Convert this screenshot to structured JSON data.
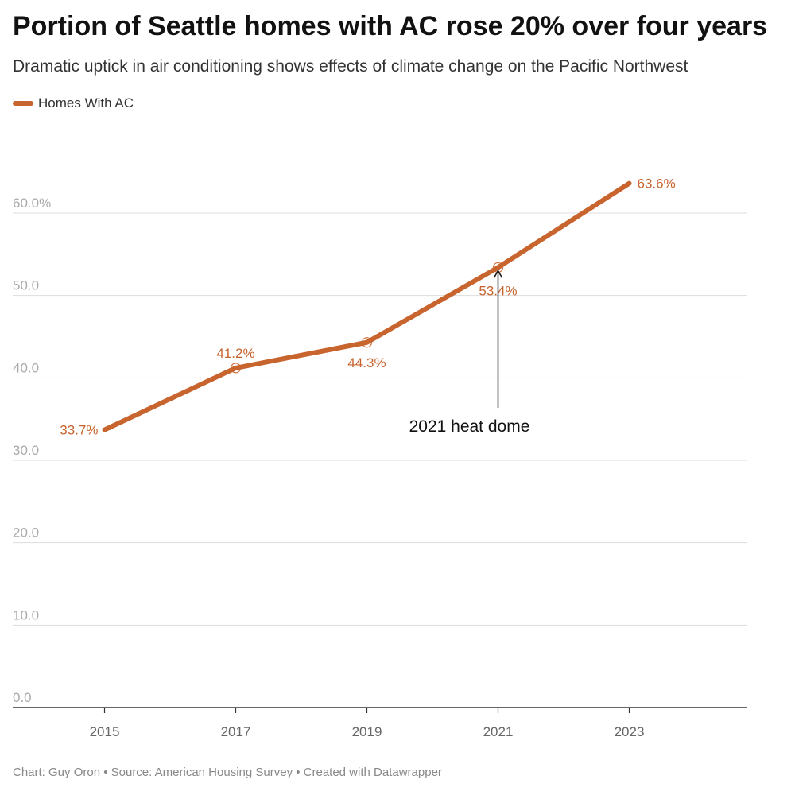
{
  "title": "Portion of Seattle homes with AC rose 20% over four years",
  "subtitle": "Dramatic uptick in air conditioning shows effects of climate change on the Pacific Northwest",
  "footer": "Chart: Guy Oron • Source: American Housing Survey • Created with Datawrapper",
  "colors": {
    "series": "#c8642e",
    "grid": "#dddddd",
    "axis": "#333333",
    "tick_label": "#aaaaaa",
    "x_tick_label": "#666666"
  },
  "chart_data": {
    "type": "line",
    "title": "Portion of Seattle homes with AC rose 20% over four years",
    "subtitle": "Dramatic uptick in air conditioning shows effects of climate change on the Pacific Northwest",
    "x": [
      2015,
      2017,
      2019,
      2021,
      2023
    ],
    "series": [
      {
        "name": "Homes With AC",
        "values": [
          33.7,
          41.2,
          44.3,
          53.4,
          63.6
        ],
        "labels": [
          "33.7%",
          "41.2%",
          "44.3%",
          "53.4%",
          "63.6%"
        ]
      }
    ],
    "y_ticks": [
      0,
      10,
      20,
      30,
      40,
      50,
      60
    ],
    "y_tick_labels": [
      "0.0",
      "10.0",
      "20.0",
      "30.0",
      "40.0",
      "50.0",
      "60.0%"
    ],
    "x_tick_labels": [
      "2015",
      "2017",
      "2019",
      "2021",
      "2023"
    ],
    "ylim": [
      0,
      60
    ],
    "xlim": [
      2013.6,
      2024.8
    ],
    "grid": true,
    "legend": "top-left",
    "annotation": {
      "text": "2021 heat dome",
      "x": 2021,
      "y": 53.4
    }
  }
}
